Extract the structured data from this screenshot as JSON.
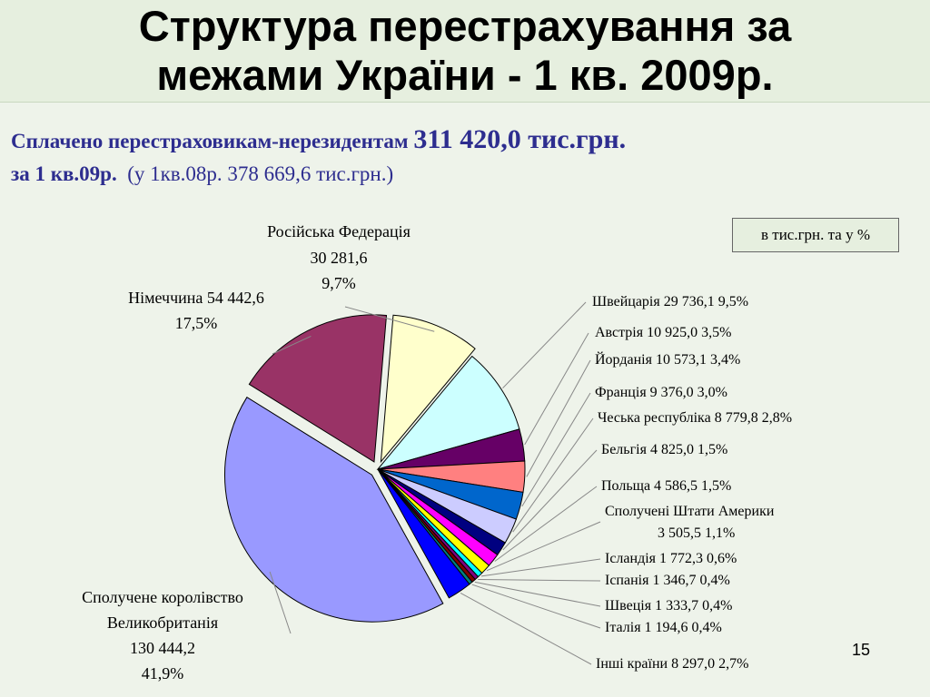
{
  "header": {
    "title_line1": "Структура перестрахування за",
    "title_line2": "межами України - 1 кв. 2009р."
  },
  "subtitle": {
    "part1": "Сплачено перестраховикам-нерезидентам",
    "amount": "311 420,0 тис.грн.",
    "part2": "за 1 кв.09р.",
    "comparison": "(у 1кв.08р. 378 669,6 тис.грн.)"
  },
  "units_note": "в тис.грн. та у %",
  "page_number": "15",
  "chart_data": {
    "type": "pie",
    "title": "",
    "units": "тис.грн.",
    "slices": [
      {
        "name": "Російська Федерація",
        "value": 30281.6,
        "percent": "9,7%",
        "value_label": "30 281,6",
        "color": "#ffffcc"
      },
      {
        "name": "Швейцарія",
        "value": 29736.1,
        "percent": "9,5%",
        "value_label": "29 736,1",
        "color": "#ccffff"
      },
      {
        "name": "Австрія",
        "value": 10925.0,
        "percent": "3,5%",
        "value_label": "10 925,0",
        "color": "#660066"
      },
      {
        "name": "Йорданія",
        "value": 10573.1,
        "percent": "3,4%",
        "value_label": "10 573,1",
        "color": "#ff8080"
      },
      {
        "name": "Франція",
        "value": 9376.0,
        "percent": "3,0%",
        "value_label": "9 376,0",
        "color": "#0066cc"
      },
      {
        "name": "Чеська республіка",
        "value": 8779.8,
        "percent": "2,8%",
        "value_label": "8 779,8",
        "color": "#ccccff"
      },
      {
        "name": "Бельгія",
        "value": 4825.0,
        "percent": "1,5%",
        "value_label": "4 825,0",
        "color": "#000080"
      },
      {
        "name": "Польща",
        "value": 4586.5,
        "percent": "1,5%",
        "value_label": "4 586,5",
        "color": "#ff00ff"
      },
      {
        "name": "Сполучені Штати Америки",
        "value": 3505.5,
        "percent": "1,1%",
        "value_label": "3 505,5",
        "color": "#ffff00"
      },
      {
        "name": "Ісландія",
        "value": 1772.3,
        "percent": "0,6%",
        "value_label": "1 772,3",
        "color": "#00ffff"
      },
      {
        "name": "Іспанія",
        "value": 1346.7,
        "percent": "0,4%",
        "value_label": "1 346,7",
        "color": "#800080"
      },
      {
        "name": "Швеція",
        "value": 1333.7,
        "percent": "0,4%",
        "value_label": "1 333,7",
        "color": "#800000"
      },
      {
        "name": "Італія",
        "value": 1194.6,
        "percent": "0,4%",
        "value_label": "1 194,6",
        "color": "#008080"
      },
      {
        "name": "Інші країни",
        "value": 8297.0,
        "percent": "2,7%",
        "value_label": "8 297,0",
        "color": "#0000ff"
      },
      {
        "name": "Сполучене королівство Великобританія",
        "value": 130444.2,
        "percent": "41,9%",
        "value_label": "130 444,2",
        "color": "#9999ff"
      },
      {
        "name": "Німеччина",
        "value": 54442.6,
        "percent": "17,5%",
        "value_label": "54 442,6",
        "color": "#993366"
      }
    ],
    "labels": {
      "ru": {
        "l1": "Російська Федерація",
        "l2": "30 281,6",
        "l3": "9,7%"
      },
      "de": {
        "l1": "Німеччина 54 442,6",
        "l2": "17,5%"
      },
      "uk": {
        "l1": "Сполучене королівство",
        "l2": "Великобританія",
        "l3": "130 444,2",
        "l4": "41,9%"
      },
      "ch": "Швейцарія 29 736,1 9,5%",
      "at": "Австрія 10 925,0 3,5%",
      "jo": "Йорданія 10 573,1 3,4%",
      "fr": "Франція 9 376,0 3,0%",
      "cz": "Чеська республіка 8 779,8 2,8%",
      "be": "Бельгія 4 825,0 1,5%",
      "pl": "Польща 4 586,5 1,5%",
      "us_l1": "Сполучені Штати Америки",
      "us_l2": "3 505,5      1,1%",
      "is": "Ісландія 1 772,3 0,6%",
      "es": "Іспанія 1 346,7 0,4%",
      "se": "Швеція 1 333,7 0,4%",
      "it": "Італія 1 194,6 0,4%",
      "other": "Інші країни 8 297,0 2,7%"
    }
  }
}
